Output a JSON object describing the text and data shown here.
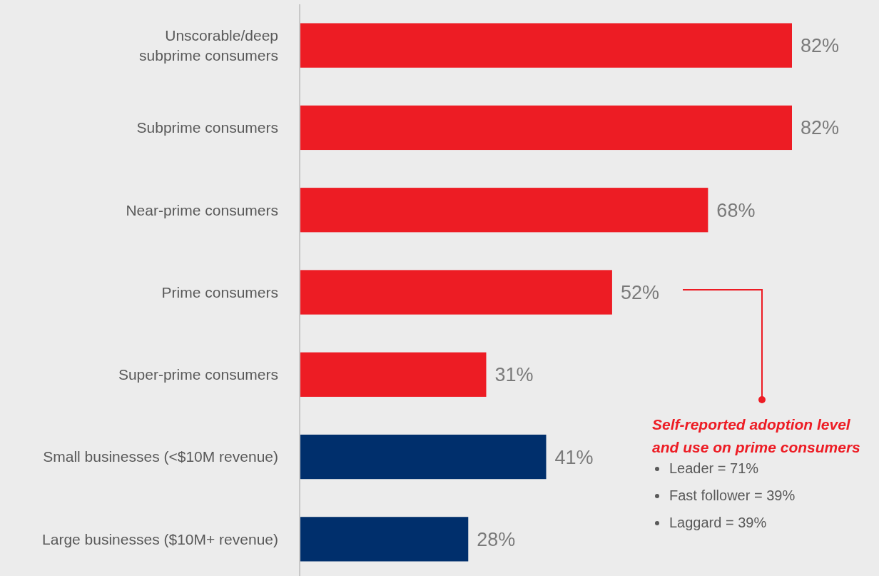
{
  "chart_data": {
    "type": "bar",
    "orientation": "horizontal",
    "categories": [
      "Unscorable/deep subprime consumers",
      "Subprime consumers",
      "Near-prime consumers",
      "Prime consumers",
      "Super-prime consumers",
      "Small businesses (<$10M revenue)",
      "Large businesses ($10M+ revenue)"
    ],
    "values": [
      82,
      82,
      68,
      52,
      31,
      41,
      28
    ],
    "colors": [
      "#ed1c24",
      "#ed1c24",
      "#ed1c24",
      "#ed1c24",
      "#ed1c24",
      "#002f6c",
      "#002f6c"
    ],
    "value_labels": [
      "82%",
      "82%",
      "68%",
      "52%",
      "31%",
      "41%",
      "28%"
    ],
    "annotations": [
      "Self-reported adoption level and use on prime consumers",
      "Leader = 71%",
      "Fast follower = 39%",
      "Laggard = 39%"
    ]
  }
}
